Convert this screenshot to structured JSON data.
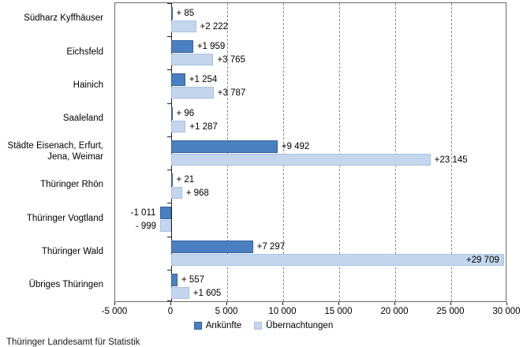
{
  "footer": {
    "source": "Thüringer Landesamt für Statistik"
  },
  "chart_data": {
    "type": "bar",
    "orientation": "horizontal",
    "title": "",
    "xlabel": "",
    "ylabel": "",
    "xlim": [
      -5000,
      30000
    ],
    "x_ticks": [
      "-5 000",
      "0",
      "5 000",
      "10 000",
      "15 000",
      "20 000",
      "25 000",
      "30 000"
    ],
    "x_tick_values": [
      -5000,
      0,
      5000,
      10000,
      15000,
      20000,
      25000,
      30000
    ],
    "gridline_values": [
      5000,
      10000,
      15000,
      20000,
      25000
    ],
    "grid_style": "dashed-vertical",
    "legend_position": "bottom",
    "categories": [
      {
        "lines": [
          "Südharz Kyffhäuser"
        ]
      },
      {
        "lines": [
          "Eichsfeld"
        ]
      },
      {
        "lines": [
          "Hainich"
        ]
      },
      {
        "lines": [
          "Saaleland"
        ]
      },
      {
        "lines": [
          "Städte Eisenach, Erfurt,",
          "Jena, Weimar"
        ]
      },
      {
        "lines": [
          "Thüringer Rhön"
        ]
      },
      {
        "lines": [
          "Thüringer Vogtland"
        ]
      },
      {
        "lines": [
          "Thüringer Wald"
        ]
      },
      {
        "lines": [
          "Übriges Thüringen"
        ]
      }
    ],
    "series": [
      {
        "name": "Ankünfte",
        "fill": "#4a80c2",
        "border": "#36619c",
        "values": [
          85,
          1959,
          1254,
          96,
          9492,
          21,
          -1011,
          7297,
          557
        ],
        "labels": [
          "+ 85",
          "+1 959",
          "+1 254",
          "+ 96",
          "+9 492",
          "+ 21",
          "-1 011",
          "+7 297",
          "+ 557"
        ]
      },
      {
        "name": "Übernachtungen",
        "fill": "#c3d6ee",
        "border": "#a9c2e2",
        "values": [
          2222,
          3765,
          3787,
          1287,
          23145,
          968,
          -999,
          29709,
          1605
        ],
        "labels": [
          "+2 222",
          "+3 765",
          "+3 787",
          "+1 287",
          "+23 145",
          "+ 968",
          "- 999",
          "+29 709",
          "+1 605"
        ]
      }
    ]
  }
}
